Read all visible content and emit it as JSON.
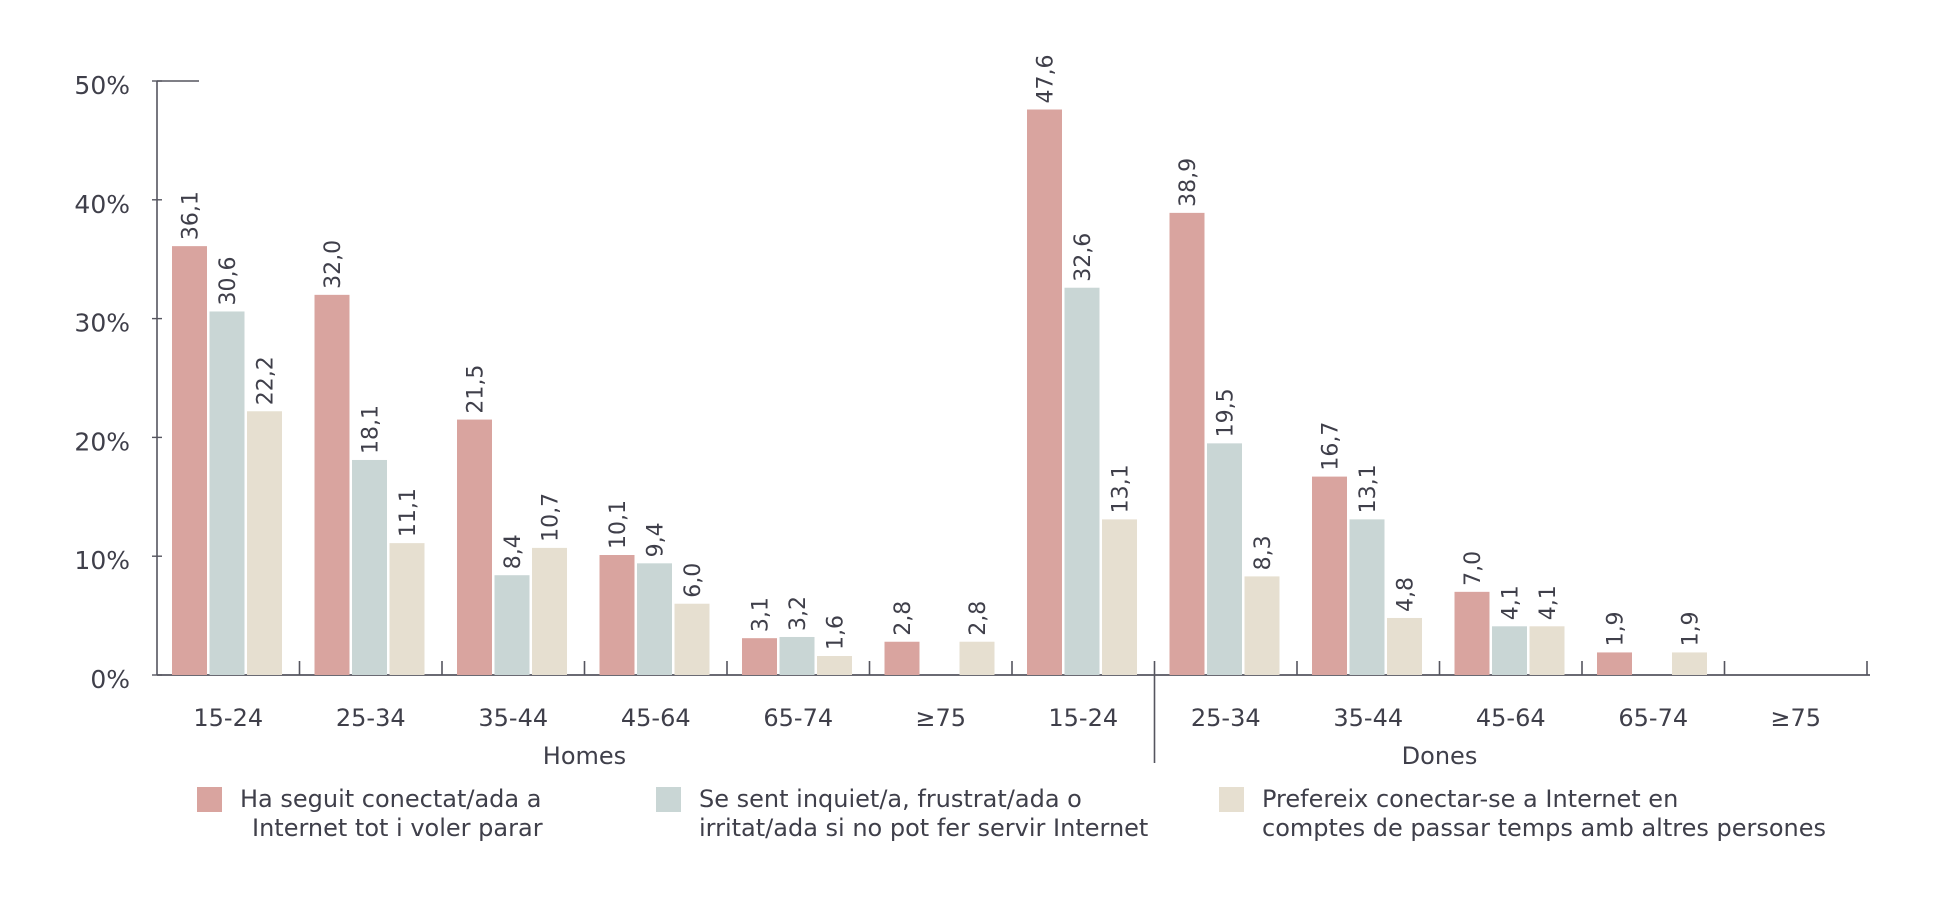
{
  "chart_data": {
    "type": "bar",
    "ylim": [
      0,
      50
    ],
    "y_ticks": [
      "0%",
      "10%",
      "20%",
      "30%",
      "40%",
      "50%"
    ],
    "grid": false,
    "legend_position": "bottom",
    "groups": [
      {
        "label": "Homes",
        "categories": [
          "15-24",
          "25-34",
          "35-44",
          "45-64",
          "65-74",
          "≥75"
        ]
      },
      {
        "label": "Dones",
        "categories": [
          "15-24",
          "25-34",
          "35-44",
          "45-64",
          "65-74",
          "≥75"
        ]
      }
    ],
    "series": [
      {
        "name": "Ha seguit conectat/ada a Internet tot i voler parar",
        "legend_lines": [
          "Ha seguit conectat/ada a",
          "Internet tot i voler parar"
        ],
        "color": "#d9a49f",
        "values": [
          36.1,
          32.0,
          21.5,
          10.1,
          3.1,
          2.8,
          47.6,
          38.9,
          16.7,
          7.0,
          1.9,
          null
        ]
      },
      {
        "name": "Se sent inquiet/a, frustrat/ada o irritat/ada si no pot fer servir Internet",
        "legend_lines": [
          "Se sent inquiet/a, frustrat/ada o",
          "irritat/ada si no pot fer servir Internet"
        ],
        "color": "#c9d6d5",
        "values": [
          30.6,
          18.1,
          8.4,
          9.4,
          3.2,
          null,
          32.6,
          19.5,
          13.1,
          4.1,
          null,
          null
        ]
      },
      {
        "name": "Prefereix conectar-se a Internet en comptes de passar temps amb altres persones",
        "legend_lines": [
          "Prefereix conectar-se a Internet en",
          "comptes de passar temps amb altres persones"
        ],
        "color": "#e6dfd0",
        "values": [
          22.2,
          11.1,
          10.7,
          6.0,
          1.6,
          2.8,
          13.1,
          8.3,
          4.8,
          4.1,
          1.9,
          null
        ]
      }
    ]
  }
}
